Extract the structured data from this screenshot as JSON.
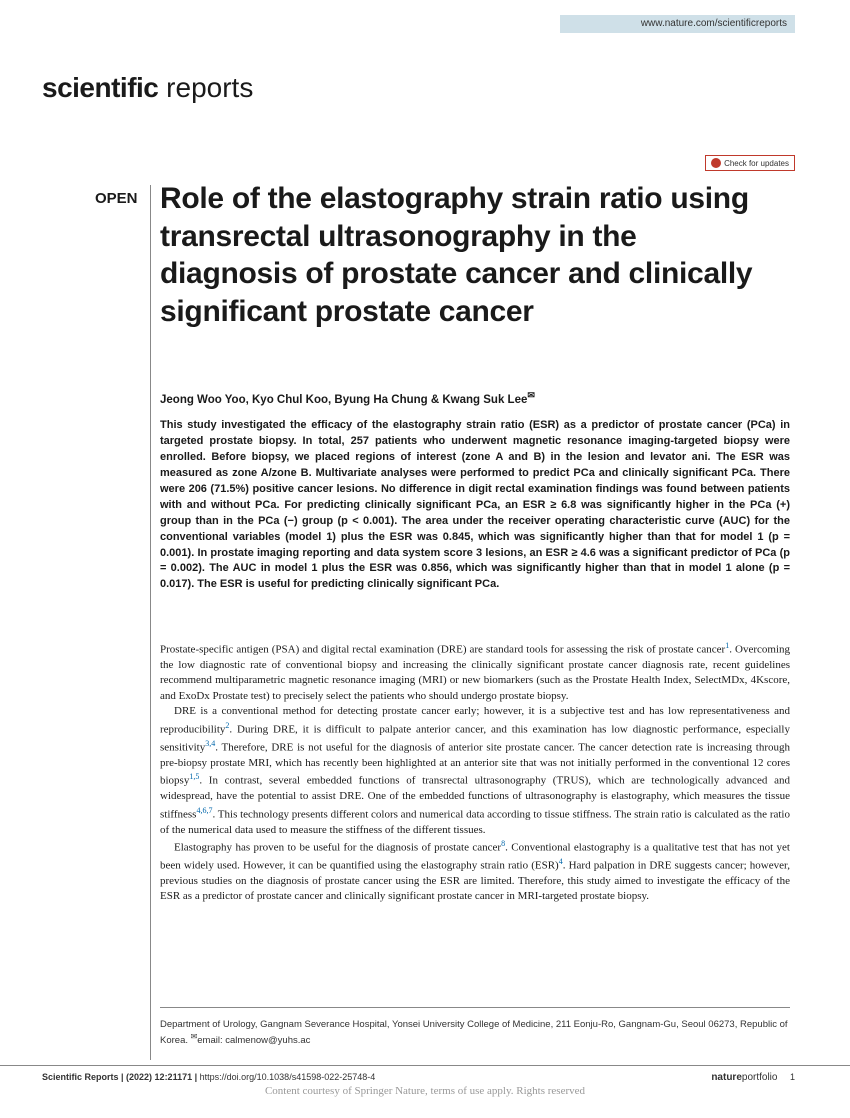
{
  "header": {
    "url": "www.nature.com/scientificreports",
    "journal_bold": "scientific",
    "journal_light": " reports",
    "check_updates": "Check for updates",
    "open_label": "OPEN"
  },
  "article": {
    "title": "Role of the elastography strain ratio using transrectal ultrasonography in the diagnosis of prostate cancer and clinically significant prostate cancer",
    "authors": "Jeong Woo Yoo, Kyo Chul Koo, Byung Ha Chung & Kwang Suk Lee",
    "abstract": "This study investigated the efficacy of the elastography strain ratio (ESR) as a predictor of prostate cancer (PCa) in targeted prostate biopsy. In total, 257 patients who underwent magnetic resonance imaging-targeted biopsy were enrolled. Before biopsy, we placed regions of interest (zone A and B) in the lesion and levator ani. The ESR was measured as zone A/zone B. Multivariate analyses were performed to predict PCa and clinically significant PCa. There were 206 (71.5%) positive cancer lesions. No difference in digit rectal examination findings was found between patients with and without PCa. For predicting clinically significant PCa, an ESR ≥ 6.8 was significantly higher in the PCa (+) group than in the PCa (−) group (p < 0.001). The area under the receiver operating characteristic curve (AUC) for the conventional variables (model 1) plus the ESR was 0.845, which was significantly higher than that for model 1 (p = 0.001). In prostate imaging reporting and data system score 3 lesions, an ESR ≥ 4.6 was a significant predictor of PCa (p = 0.002). The AUC in model 1 plus the ESR was 0.856, which was significantly higher than that in model 1 alone (p = 0.017). The ESR is useful for predicting clinically significant PCa."
  },
  "body": {
    "p1": "Prostate-specific antigen (PSA) and digital rectal examination (DRE) are standard tools for assessing the risk of prostate cancer",
    "p1b": ". Overcoming the low diagnostic rate of conventional biopsy and increasing the clinically significant prostate cancer diagnosis rate, recent guidelines recommend multiparametric magnetic resonance imaging (MRI) or new biomarkers (such as the Prostate Health Index, SelectMDx, 4Kscore, and ExoDx Prostate test) to precisely select the patients who should undergo prostate biopsy.",
    "p2a": "DRE is a conventional method for detecting prostate cancer early; however, it is a subjective test and has low representativeness and reproducibility",
    "p2b": ". During DRE, it is difficult to palpate anterior cancer, and this examination has low diagnostic performance, especially sensitivity",
    "p2c": ". Therefore, DRE is not useful for the diagnosis of anterior site prostate cancer. The cancer detection rate is increasing through pre-biopsy prostate MRI, which has recently been highlighted at an anterior site that was not initially performed in the conventional 12 cores biopsy",
    "p2d": ". In contrast, several embedded functions of transrectal ultrasonography (TRUS), which are technologically advanced and widespread, have the potential to assist DRE. One of the embedded functions of ultrasonography is elastography, which measures the tissue stiffness",
    "p2e": ". This technology presents different colors and numerical data according to tissue stiffness. The strain ratio is calculated as the ratio of the numerical data used to measure the stiffness of the different tissues.",
    "p3a": "Elastography has proven to be useful for the diagnosis of prostate cancer",
    "p3b": ". Conventional elastography is a qualitative test that has not yet been widely used. However, it can be quantified using the elastography strain ratio (ESR)",
    "p3c": ". Hard palpation in DRE suggests cancer; however, previous studies on the diagnosis of prostate cancer using the ESR are limited. Therefore, this study aimed to investigate the efficacy of the ESR as a predictor of prostate cancer and clinically significant prostate cancer in MRI-targeted prostate biopsy."
  },
  "refs": {
    "r1": "1",
    "r2": "2",
    "r34": "3,4",
    "r15": "1,5",
    "r467": "4,6,7",
    "r8": "8",
    "r4": "4"
  },
  "affiliation": {
    "text": "Department of Urology, Gangnam Severance Hospital, Yonsei University College of Medicine, 211 Eonju-Ro, Gangnam-Gu, Seoul 06273, Republic of Korea. ",
    "email_label": "email: ",
    "email": "calmenow@yuhs.ac"
  },
  "footer": {
    "left": "Scientific Reports |        (2022) 12:21171  |",
    "doi": "https://doi.org/10.1038/s41598-022-25748-4",
    "portfolio_bold": "nature",
    "portfolio_light": "portfolio",
    "page": "1",
    "watermark": "Content courtesy of Springer Nature, terms of use apply. Rights reserved"
  }
}
